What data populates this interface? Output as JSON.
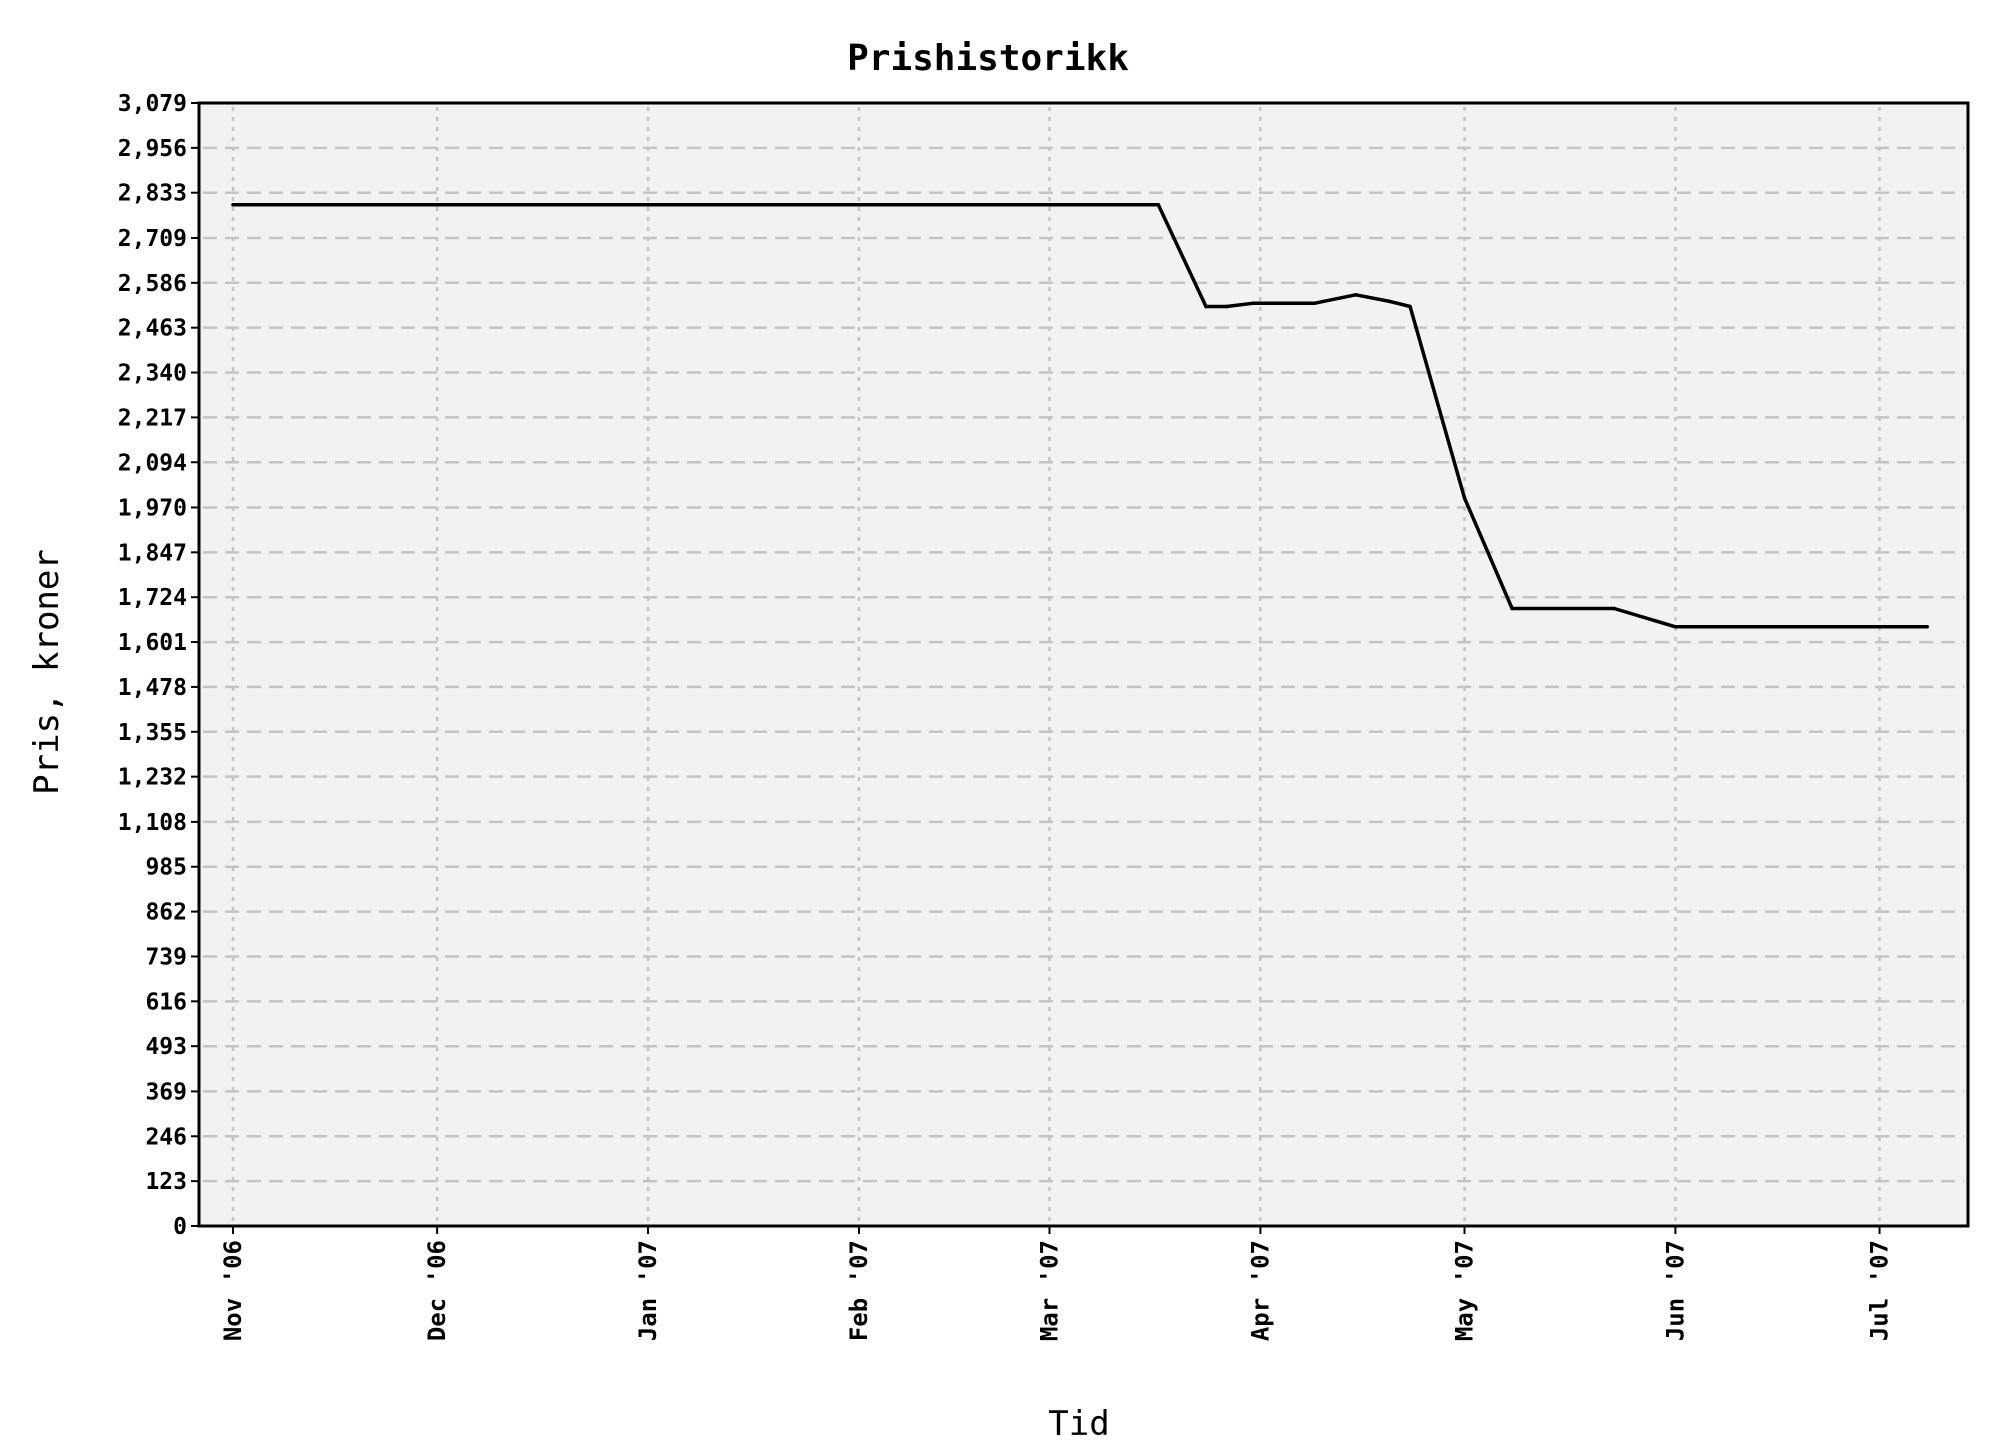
{
  "chart_data": {
    "type": "line",
    "title": "Prishistorikk",
    "xlabel": "Tid",
    "ylabel": "Pris, kroner",
    "x_ticks": [
      {
        "date": "2006-11-01",
        "label": "Nov '06"
      },
      {
        "date": "2006-12-01",
        "label": "Dec '06"
      },
      {
        "date": "2007-01-01",
        "label": "Jan '07"
      },
      {
        "date": "2007-02-01",
        "label": "Feb '07"
      },
      {
        "date": "2007-03-01",
        "label": "Mar '07"
      },
      {
        "date": "2007-04-01",
        "label": "Apr '07"
      },
      {
        "date": "2007-05-01",
        "label": "May '07"
      },
      {
        "date": "2007-06-01",
        "label": "Jun '07"
      },
      {
        "date": "2007-07-01",
        "label": "Jul '07"
      }
    ],
    "y_ticks": [
      "0",
      "123",
      "246",
      "369",
      "493",
      "616",
      "739",
      "862",
      "985",
      "1,108",
      "1,232",
      "1,355",
      "1,478",
      "1,601",
      "1,724",
      "1,847",
      "1,970",
      "2,094",
      "2,217",
      "2,340",
      "2,463",
      "2,586",
      "2,709",
      "2,833",
      "2,956",
      "3,079"
    ],
    "ylim": [
      0,
      3079
    ],
    "xlim": [
      "2006-10-27",
      "2007-07-14"
    ],
    "grid": true,
    "series": [
      {
        "points": [
          {
            "x": "2006-11-01",
            "y": 2800
          },
          {
            "x": "2007-03-17",
            "y": 2800
          },
          {
            "x": "2007-03-24",
            "y": 2521
          },
          {
            "x": "2007-03-27",
            "y": 2521
          },
          {
            "x": "2007-03-31",
            "y": 2530
          },
          {
            "x": "2007-04-09",
            "y": 2530
          },
          {
            "x": "2007-04-15",
            "y": 2553
          },
          {
            "x": "2007-04-20",
            "y": 2535
          },
          {
            "x": "2007-04-23",
            "y": 2521
          },
          {
            "x": "2007-05-01",
            "y": 1996
          },
          {
            "x": "2007-05-08",
            "y": 1693
          },
          {
            "x": "2007-05-23",
            "y": 1693
          },
          {
            "x": "2007-06-01",
            "y": 1643
          },
          {
            "x": "2007-07-08",
            "y": 1643
          }
        ],
        "color": "#000000"
      }
    ]
  }
}
